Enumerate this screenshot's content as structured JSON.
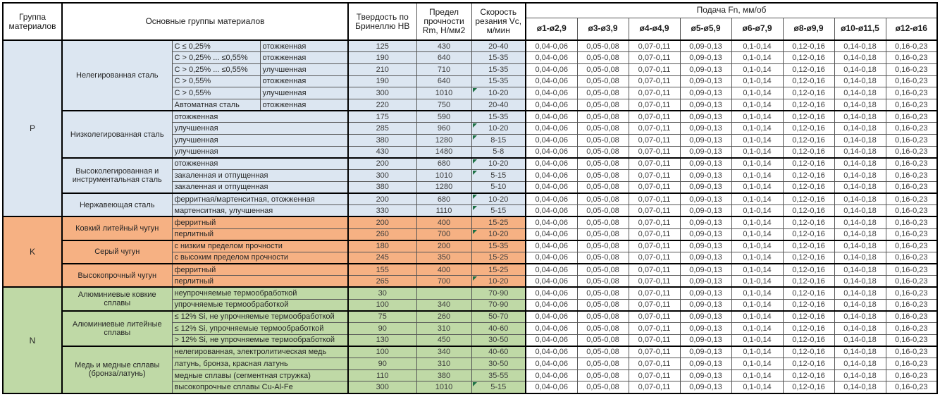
{
  "header": {
    "group_col": "Группа материалов",
    "main_col": "Основные группы материалов",
    "hb_col": "Твердость по Бринеллю HB",
    "rm_col": "Предел прочности Rm, Н/мм2",
    "vc_col": "Скорость резания Vc, м/мин",
    "feed_title": "Подача Fn, мм/об",
    "feed_cols": [
      "ø1-ø2,9",
      "ø3-ø3,9",
      "ø4-ø4,9",
      "ø5-ø5,9",
      "ø6-ø7,9",
      "ø8-ø9,9",
      "ø10-ø11,5",
      "ø12-ø16"
    ]
  },
  "feed_values": [
    "0,04-0,06",
    "0,05-0,08",
    "0,07-0,11",
    "0,09-0,13",
    "0,1-0,14",
    "0,12-0,16",
    "0,14-0,18",
    "0,16-0,23"
  ],
  "colors": {
    "group_p": "#DCE6F1",
    "group_k": "#F6B183",
    "group_n": "#BFD9A6",
    "flag_triangle": "#1E7145"
  },
  "groups": [
    {
      "letter": "P",
      "color": "#DCE6F1",
      "subgroups": [
        {
          "name": "Нелегированная сталь",
          "rows": [
            {
              "desc": [
                "C ≤ 0,25%",
                "отожженная"
              ],
              "hb": "125",
              "rm": "430",
              "vc": "20-40",
              "flag": false
            },
            {
              "desc": [
                "C > 0,25% ... ≤0,55%",
                "отожженная"
              ],
              "hb": "190",
              "rm": "640",
              "vc": "15-35",
              "flag": false
            },
            {
              "desc": [
                "C > 0,25% ... ≤0,55%",
                "улучшенная"
              ],
              "hb": "210",
              "rm": "710",
              "vc": "15-35",
              "flag": false
            },
            {
              "desc": [
                "C > 0,55%",
                "отожженная"
              ],
              "hb": "190",
              "rm": "640",
              "vc": "15-35",
              "flag": false
            },
            {
              "desc": [
                "C > 0,55%",
                "улучшенная"
              ],
              "hb": "300",
              "rm": "1010",
              "vc": "10-20",
              "flag": true
            },
            {
              "desc": [
                "Автоматная сталь",
                "отожженная"
              ],
              "hb": "220",
              "rm": "750",
              "vc": "20-40",
              "flag": false
            }
          ]
        },
        {
          "name": "Низколегированная сталь",
          "rows": [
            {
              "desc": [
                "отожженная"
              ],
              "hb": "175",
              "rm": "590",
              "vc": "15-35",
              "flag": false
            },
            {
              "desc": [
                "улучшенная"
              ],
              "hb": "285",
              "rm": "960",
              "vc": "10-20",
              "flag": true
            },
            {
              "desc": [
                "улучшенная"
              ],
              "hb": "380",
              "rm": "1280",
              "vc": "8-15",
              "flag": true
            },
            {
              "desc": [
                "улучшенная"
              ],
              "hb": "430",
              "rm": "1480",
              "vc": "5-8",
              "flag": false
            }
          ]
        },
        {
          "name": "Высоколегированная и инструментальная сталь",
          "rows": [
            {
              "desc": [
                "отожженная"
              ],
              "hb": "200",
              "rm": "680",
              "vc": "10-20",
              "flag": true
            },
            {
              "desc": [
                "закаленная и отпущенная"
              ],
              "hb": "300",
              "rm": "1010",
              "vc": "5-15",
              "flag": true
            },
            {
              "desc": [
                "закаленная и отпущенная"
              ],
              "hb": "380",
              "rm": "1280",
              "vc": "5-10",
              "flag": false
            }
          ]
        },
        {
          "name": "Нержавеющая сталь",
          "rows": [
            {
              "desc": [
                "ферритная/мартенситная, отожженная"
              ],
              "hb": "200",
              "rm": "680",
              "vc": "10-20",
              "flag": true
            },
            {
              "desc": [
                "мартенситная, улучшенная"
              ],
              "hb": "330",
              "rm": "1110",
              "vc": "5-15",
              "flag": true
            }
          ]
        }
      ]
    },
    {
      "letter": "K",
      "color": "#F6B183",
      "subgroups": [
        {
          "name": "Ковкий литейный чугун",
          "rows": [
            {
              "desc": [
                "ферритный"
              ],
              "hb": "200",
              "rm": "400",
              "vc": "15-25",
              "flag": false
            },
            {
              "desc": [
                "перлитный"
              ],
              "hb": "260",
              "rm": "700",
              "vc": "10-20",
              "flag": true
            }
          ]
        },
        {
          "name": "Серый чугун",
          "rows": [
            {
              "desc": [
                "с низким пределом прочности"
              ],
              "hb": "180",
              "rm": "200",
              "vc": "15-35",
              "flag": false
            },
            {
              "desc": [
                "с высоким пределом прочности"
              ],
              "hb": "245",
              "rm": "350",
              "vc": "15-25",
              "flag": false
            }
          ]
        },
        {
          "name": "Высокопрочный чугун",
          "rows": [
            {
              "desc": [
                "ферритный"
              ],
              "hb": "155",
              "rm": "400",
              "vc": "15-25",
              "flag": false
            },
            {
              "desc": [
                "перлитный"
              ],
              "hb": "265",
              "rm": "700",
              "vc": "10-20",
              "flag": true
            }
          ]
        }
      ]
    },
    {
      "letter": "N",
      "color": "#BFD9A6",
      "subgroups": [
        {
          "name": "Алюминиевые ковкие сплавы",
          "rows": [
            {
              "desc": [
                "неупрочняемые термообработкой"
              ],
              "hb": "30",
              "rm": "",
              "vc": "70-90",
              "flag": false
            },
            {
              "desc": [
                "упрочняемые термообработкой"
              ],
              "hb": "100",
              "rm": "340",
              "vc": "70-90",
              "flag": false
            }
          ]
        },
        {
          "name": "Алюминиевые литейные сплавы",
          "rows": [
            {
              "desc": [
                "≤ 12% Si, не упрочняемые термообработкой"
              ],
              "hb": "75",
              "rm": "260",
              "vc": "50-70",
              "flag": false
            },
            {
              "desc": [
                "≤ 12% Si, упрочняемые термообработкой"
              ],
              "hb": "90",
              "rm": "310",
              "vc": "40-60",
              "flag": false
            },
            {
              "desc": [
                "> 12% Si, не упрочняемые термообработкой"
              ],
              "hb": "130",
              "rm": "450",
              "vc": "30-50",
              "flag": false
            }
          ]
        },
        {
          "name": "Медь и медные сплавы (бронза/латунь)",
          "rows": [
            {
              "desc": [
                "нелегированная, электролитическая медь"
              ],
              "hb": "100",
              "rm": "340",
              "vc": "40-60",
              "flag": false
            },
            {
              "desc": [
                "латунь, бронза, красная латунь"
              ],
              "hb": "90",
              "rm": "310",
              "vc": "30-50",
              "flag": false
            },
            {
              "desc": [
                "медные сплавы (сегментная стружка)"
              ],
              "hb": "110",
              "rm": "380",
              "vc": "35-55",
              "flag": false
            },
            {
              "desc": [
                "высокопрочные сплавы Cu-Al-Fe"
              ],
              "hb": "300",
              "rm": "1010",
              "vc": "5-15",
              "flag": true
            }
          ]
        }
      ]
    }
  ]
}
